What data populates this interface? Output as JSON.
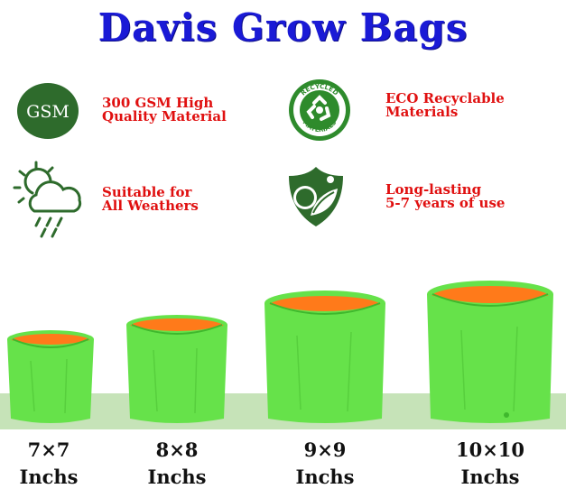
{
  "title": "Davis Grow Bags",
  "features": [
    {
      "icon": "gsm-badge-icon",
      "icon_text": "GSM",
      "text": "300 GSM High\nQuality Material"
    },
    {
      "icon": "recycled-materials-icon",
      "badge_top": "RECYCLED",
      "badge_bottom": "MATERIALS",
      "text": "ECO Recyclable\n Materials"
    },
    {
      "icon": "weather-icon",
      "text": "Suitable for\nAll Weathers"
    },
    {
      "icon": "shield-leaf-icon",
      "text": "Long-lasting\n5-7 years of use"
    }
  ],
  "sizes": [
    {
      "label": "7×7\nInchs"
    },
    {
      "label": "8×8\nInchs"
    },
    {
      "label": "9×9\nInchs"
    },
    {
      "label": "10×10\nInchs"
    }
  ],
  "colors": {
    "title": "#1a1ad6",
    "feature_text": "#e01010",
    "icon_green": "#2e6b2c",
    "bag_green": "#66e24a",
    "bag_inner": "#ff7a1a",
    "ground": "#c6e3b8"
  }
}
